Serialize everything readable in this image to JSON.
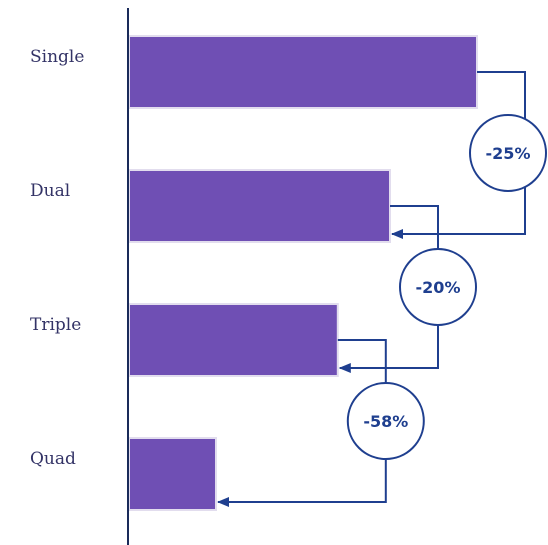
{
  "chart_data": {
    "type": "bar",
    "orientation": "horizontal",
    "categories": [
      "Single",
      "Dual",
      "Triple",
      "Quad"
    ],
    "values": [
      100,
      75,
      60,
      25
    ],
    "xlim": [
      0,
      100
    ],
    "grid": false,
    "bar_color": "#6f4fb4",
    "annotation_color": "#1f3f8f",
    "annotations": [
      {
        "from": "Single",
        "to": "Dual",
        "label": "-25%"
      },
      {
        "from": "Dual",
        "to": "Triple",
        "label": "-20%"
      },
      {
        "from": "Triple",
        "to": "Quad",
        "label": "-58%"
      }
    ]
  }
}
